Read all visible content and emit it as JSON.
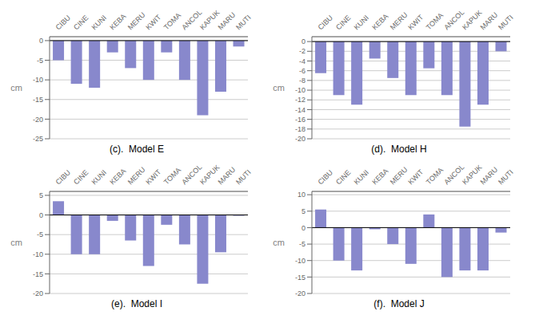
{
  "chart_data": [
    {
      "type": "bar",
      "title": "(c).  Model E",
      "ylabel": "cm",
      "categories": [
        "CIBU",
        "CINE",
        "KUNI",
        "KEBA",
        "MERU",
        "KWIT",
        "TOMA",
        "ANCOL",
        "KAPUK",
        "MARU",
        "MUTI"
      ],
      "values": [
        -5,
        -11,
        -12,
        -3,
        -7,
        -10,
        -3,
        -10,
        -19,
        -13,
        -1.5
      ],
      "color": "#8888cc",
      "ylim": [
        -25,
        1
      ],
      "yticks": [
        0,
        -5,
        -10,
        -15,
        -20,
        -25
      ],
      "grid": true
    },
    {
      "type": "bar",
      "title": "(d).  Model H",
      "ylabel": "cm",
      "categories": [
        "CIBU",
        "CINE",
        "KUNI",
        "KEBA",
        "MERU",
        "KWIT",
        "TOMA",
        "ANCOL",
        "KAPUK",
        "MARU",
        "MUTI"
      ],
      "values": [
        -6.5,
        -11,
        -13,
        -3.5,
        -7.5,
        -11,
        -5.5,
        -11,
        -17.5,
        -13,
        -2
      ],
      "color": "#8888cc",
      "ylim": [
        -20,
        1
      ],
      "yticks": [
        0,
        -2,
        -4,
        -6,
        -8,
        -10,
        -12,
        -14,
        -16,
        -18,
        -20
      ],
      "grid": true
    },
    {
      "type": "bar",
      "title": "(e).  Model I",
      "ylabel": "cm",
      "categories": [
        "CIBU",
        "CINE",
        "KUNI",
        "KEBA",
        "MERU",
        "KWIT",
        "TOMA",
        "ANCOL",
        "KAPUK",
        "MARU",
        "MUTI"
      ],
      "values": [
        3.5,
        -10,
        -10,
        -1.5,
        -6.5,
        -13,
        -2.5,
        -7.5,
        -17.5,
        -9.5,
        -0.2
      ],
      "color": "#8888cc",
      "ylim": [
        -20,
        6
      ],
      "yticks": [
        5,
        0,
        -5,
        -10,
        -15,
        -20
      ],
      "grid": true
    },
    {
      "type": "bar",
      "title": "(f).  Model J",
      "ylabel": "cm",
      "categories": [
        "CIBU",
        "CINE",
        "KUNI",
        "KEBA",
        "MERU",
        "KWIT",
        "TOMA",
        "ANCOL",
        "KAPUK",
        "MARU",
        "MUTI"
      ],
      "values": [
        5.5,
        -10,
        -13,
        -0.5,
        -5,
        -11,
        4,
        -15,
        -13,
        -13,
        -1.5
      ],
      "color": "#8888cc",
      "ylim": [
        -20,
        11
      ],
      "yticks": [
        10,
        5,
        0,
        -5,
        -10,
        -15,
        -20
      ],
      "grid": true
    }
  ]
}
